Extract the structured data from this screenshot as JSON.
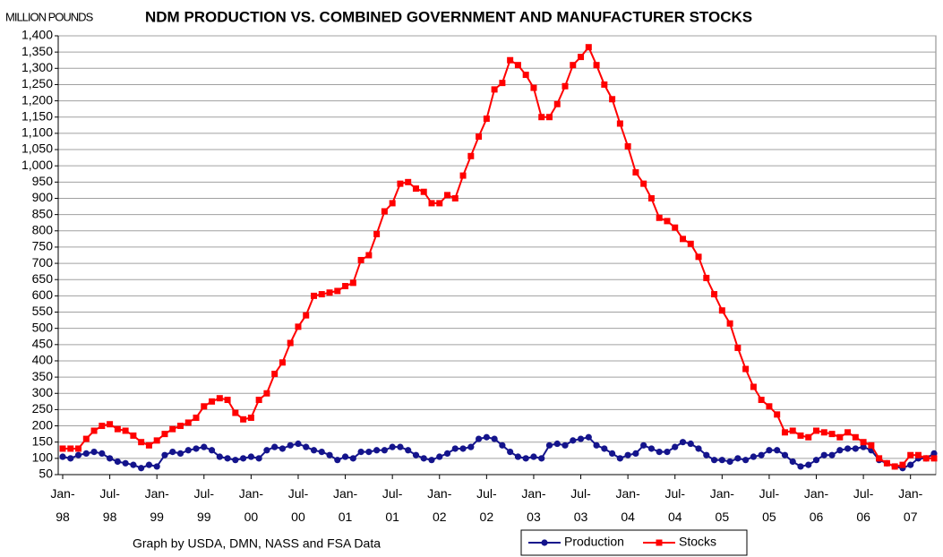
{
  "chart_data": {
    "type": "line",
    "title": "NDM PRODUCTION VS. COMBINED GOVERNMENT AND MANUFACTURER STOCKS",
    "y_axis_label": "MILLION POUNDS",
    "source": "Graph by USDA, DMN, NASS and FSA Data",
    "categories": [
      "Jan-\n98",
      null,
      null,
      null,
      null,
      null,
      "Jul-\n98",
      null,
      null,
      null,
      null,
      null,
      "Jan-\n99",
      null,
      null,
      null,
      null,
      null,
      "Jul-\n99",
      null,
      null,
      null,
      null,
      null,
      "Jan-\n00",
      null,
      null,
      null,
      null,
      null,
      "Jul-\n00",
      null,
      null,
      null,
      null,
      null,
      "Jan-\n01",
      null,
      null,
      null,
      null,
      null,
      "Jul-\n01",
      null,
      null,
      null,
      null,
      null,
      "Jan-\n02",
      null,
      null,
      null,
      null,
      null,
      "Jul-\n02",
      null,
      null,
      null,
      null,
      null,
      "Jan-\n03",
      null,
      null,
      null,
      null,
      null,
      "Jul-\n03",
      null,
      null,
      null,
      null,
      null,
      "Jan-\n04",
      null,
      null,
      null,
      null,
      null,
      "Jul-\n04",
      null,
      null,
      null,
      null,
      null,
      "Jan-\n05",
      null,
      null,
      null,
      null,
      null,
      "Jul-\n05",
      null,
      null,
      null,
      null,
      null,
      "Jan-\n06",
      null,
      null,
      null,
      null,
      null,
      "Jul-\n06",
      null,
      null,
      null,
      null,
      null,
      "Jan-\n07",
      null,
      null,
      null
    ],
    "series": [
      {
        "name": "Production",
        "color": "#14148c",
        "marker": "circle",
        "values": [
          105,
          100,
          110,
          115,
          120,
          115,
          100,
          90,
          85,
          80,
          70,
          80,
          75,
          110,
          120,
          115,
          125,
          130,
          135,
          125,
          105,
          100,
          95,
          100,
          105,
          100,
          125,
          135,
          130,
          140,
          145,
          135,
          125,
          120,
          110,
          95,
          105,
          100,
          120,
          120,
          125,
          125,
          135,
          135,
          125,
          110,
          100,
          95,
          105,
          115,
          130,
          130,
          135,
          160,
          165,
          160,
          140,
          120,
          105,
          100,
          105,
          100,
          140,
          145,
          140,
          155,
          160,
          165,
          140,
          130,
          115,
          100,
          110,
          115,
          140,
          130,
          120,
          120,
          135,
          150,
          145,
          130,
          110,
          95,
          95,
          90,
          100,
          95,
          105,
          110,
          125,
          125,
          110,
          90,
          75,
          80,
          95,
          110,
          110,
          125,
          130,
          130,
          135,
          125,
          95,
          85,
          75,
          70,
          80,
          100,
          100,
          115
        ]
      },
      {
        "name": "Stocks",
        "color": "#ff0000",
        "marker": "square",
        "values": [
          130,
          130,
          130,
          160,
          185,
          200,
          205,
          190,
          185,
          170,
          150,
          140,
          155,
          175,
          190,
          200,
          210,
          225,
          260,
          275,
          285,
          280,
          240,
          220,
          225,
          280,
          300,
          360,
          395,
          455,
          505,
          540,
          600,
          605,
          610,
          615,
          630,
          640,
          710,
          725,
          790,
          860,
          885,
          945,
          950,
          930,
          920,
          885,
          885,
          910,
          900,
          970,
          1030,
          1090,
          1145,
          1235,
          1255,
          1325,
          1310,
          1280,
          1240,
          1150,
          1150,
          1190,
          1245,
          1310,
          1335,
          1365,
          1310,
          1250,
          1205,
          1130,
          1060,
          980,
          945,
          900,
          840,
          830,
          810,
          775,
          760,
          720,
          655,
          605,
          555,
          515,
          440,
          375,
          320,
          280,
          260,
          235,
          180,
          185,
          170,
          165,
          185,
          180,
          175,
          165,
          180,
          165,
          150,
          140,
          100,
          85,
          75,
          80,
          110,
          110,
          100,
          100
        ]
      }
    ],
    "ylim": [
      50,
      1400
    ],
    "yticks": [
      50,
      100,
      150,
      200,
      250,
      300,
      350,
      400,
      450,
      500,
      550,
      600,
      650,
      700,
      750,
      800,
      850,
      900,
      950,
      {
        "value": 1000,
        "label": "1,000"
      },
      {
        "value": 1050,
        "label": "1,050"
      },
      {
        "value": 1100,
        "label": "1,100"
      },
      {
        "value": 1150,
        "label": "1,150"
      },
      {
        "value": 1200,
        "label": "1,200"
      },
      {
        "value": 1250,
        "label": "1,250"
      },
      {
        "value": 1300,
        "label": "1,300"
      },
      {
        "value": 1350,
        "label": "1,350"
      },
      {
        "value": 1400,
        "label": "1,400"
      }
    ],
    "grid": true,
    "legend": "bottom"
  }
}
